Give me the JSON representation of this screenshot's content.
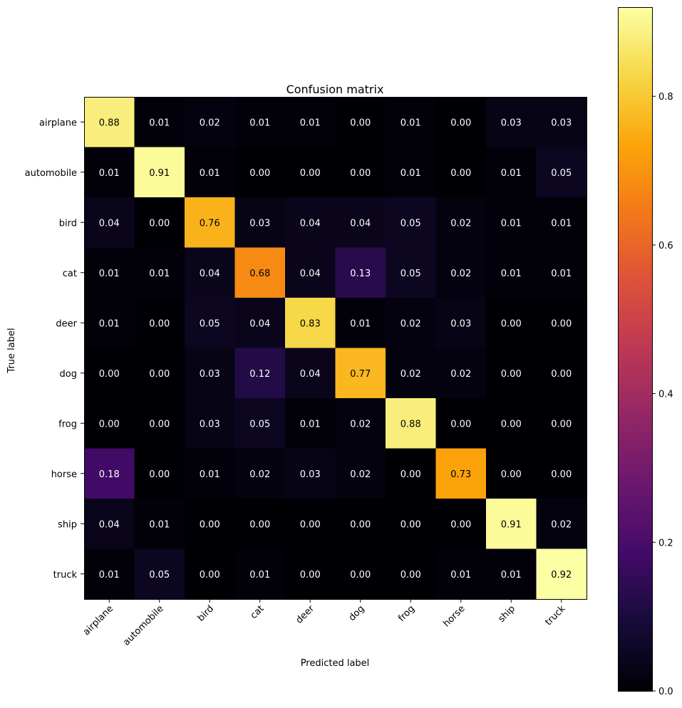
{
  "chart_data": {
    "type": "heatmap",
    "title": "Confusion matrix",
    "xlabel": "Predicted label",
    "ylabel": "True label",
    "x_categories": [
      "airplane",
      "automobile",
      "bird",
      "cat",
      "deer",
      "dog",
      "frog",
      "horse",
      "ship",
      "truck"
    ],
    "y_categories": [
      "airplane",
      "automobile",
      "bird",
      "cat",
      "deer",
      "dog",
      "frog",
      "horse",
      "ship",
      "truck"
    ],
    "values": [
      [
        0.88,
        0.01,
        0.02,
        0.01,
        0.01,
        0.0,
        0.01,
        0.0,
        0.03,
        0.03
      ],
      [
        0.01,
        0.91,
        0.01,
        0.0,
        0.0,
        0.0,
        0.01,
        0.0,
        0.01,
        0.05
      ],
      [
        0.04,
        0.0,
        0.76,
        0.03,
        0.04,
        0.04,
        0.05,
        0.02,
        0.01,
        0.01
      ],
      [
        0.01,
        0.01,
        0.04,
        0.68,
        0.04,
        0.13,
        0.05,
        0.02,
        0.01,
        0.01
      ],
      [
        0.01,
        0.0,
        0.05,
        0.04,
        0.83,
        0.01,
        0.02,
        0.03,
        0.0,
        0.0
      ],
      [
        0.0,
        0.0,
        0.03,
        0.12,
        0.04,
        0.77,
        0.02,
        0.02,
        0.0,
        0.0
      ],
      [
        0.0,
        0.0,
        0.03,
        0.05,
        0.01,
        0.02,
        0.88,
        0.0,
        0.0,
        0.0
      ],
      [
        0.18,
        0.0,
        0.01,
        0.02,
        0.03,
        0.02,
        0.0,
        0.73,
        0.0,
        0.0
      ],
      [
        0.04,
        0.01,
        0.0,
        0.0,
        0.0,
        0.0,
        0.0,
        0.0,
        0.91,
        0.02
      ],
      [
        0.01,
        0.05,
        0.0,
        0.01,
        0.0,
        0.0,
        0.0,
        0.01,
        0.01,
        0.92
      ]
    ],
    "value_format": "0.00",
    "colormap": "inferno",
    "color_range": [
      0,
      0.92
    ],
    "colorbar": {
      "ticks": [
        0.0,
        0.2,
        0.4,
        0.6,
        0.8
      ],
      "tick_labels": [
        "0.0",
        "0.2",
        "0.4",
        "0.6",
        "0.8"
      ]
    },
    "grid": false,
    "x_tick_rotation_deg": 45
  }
}
